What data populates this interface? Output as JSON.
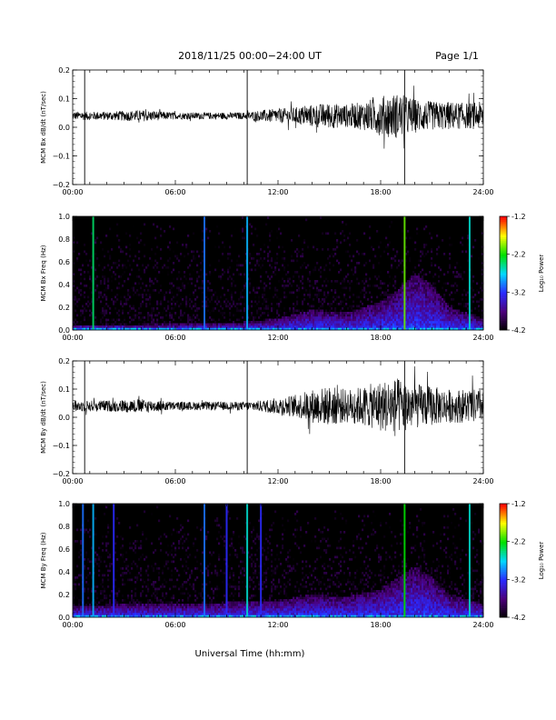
{
  "header": {
    "title": "2018/11/25  00:00−24:00 UT",
    "page": "Page 1/1"
  },
  "footer": {
    "xlabel": "Universal Time (hh:mm)"
  },
  "colormap": [
    "#000000",
    "#4b007a",
    "#2a2aff",
    "#00d8ff",
    "#00e000",
    "#ffff00",
    "#ff0000"
  ],
  "chart_data": [
    {
      "type": "line",
      "ylabel": "MCM Bx dB/dt (nT/sec)",
      "x": [
        "00:00",
        "06:00",
        "12:00",
        "18:00",
        "24:00"
      ],
      "yticks": [
        "0.2",
        "0.1",
        "0.0",
        "−0.1",
        "−0.2"
      ],
      "ylim": [
        -0.2,
        0.2
      ],
      "xlim_hours": [
        0,
        24
      ],
      "baseline": 0.04,
      "spikes_hours": [
        0.7,
        10.2,
        19.4
      ],
      "series": [
        {
          "hours": [
            0,
            2,
            4,
            6,
            8,
            10,
            11,
            12,
            13,
            14,
            15,
            16,
            17,
            18,
            19,
            20,
            21,
            22,
            23,
            24
          ],
          "envelope": [
            0.015,
            0.015,
            0.02,
            0.012,
            0.012,
            0.012,
            0.02,
            0.025,
            0.03,
            0.04,
            0.045,
            0.04,
            0.05,
            0.07,
            0.08,
            0.06,
            0.05,
            0.05,
            0.045,
            0.05
          ]
        }
      ]
    },
    {
      "type": "heatmap",
      "ylabel": "MCM Bx Freq (Hz)",
      "x": [
        "00:00",
        "06:00",
        "12:00",
        "18:00",
        "24:00"
      ],
      "yticks": [
        "1.0",
        "0.8",
        "0.6",
        "0.4",
        "0.2",
        "0.0"
      ],
      "ylim": [
        0,
        1
      ],
      "xlim_hours": [
        0,
        24
      ],
      "colorbar": {
        "label": "Log₁₀ Power",
        "ticks": [
          "-1.2",
          "-2.2",
          "-3.2",
          "-4.2"
        ],
        "range": [
          -4.2,
          -1.2
        ]
      },
      "activity_hours": [
        0,
        4,
        8,
        10,
        12,
        14,
        16,
        18,
        19,
        20,
        21,
        22,
        24
      ],
      "activity_max_freq": [
        0.05,
        0.05,
        0.06,
        0.07,
        0.1,
        0.18,
        0.15,
        0.25,
        0.35,
        0.5,
        0.4,
        0.2,
        0.1
      ],
      "stripes_hours": [
        1.2,
        7.7,
        10.2,
        19.4,
        23.2
      ],
      "stripe_power": [
        -2.4,
        -3.0,
        -2.8,
        -2.0,
        -2.6
      ]
    },
    {
      "type": "line",
      "ylabel": "MCM By dB/dt (nT/sec)",
      "x": [
        "00:00",
        "06:00",
        "12:00",
        "18:00",
        "24:00"
      ],
      "yticks": [
        "0.2",
        "0.1",
        "0.0",
        "−0.1",
        "−0.2"
      ],
      "ylim": [
        -0.2,
        0.2
      ],
      "xlim_hours": [
        0,
        24
      ],
      "baseline": 0.04,
      "spikes_hours": [
        0.7,
        10.2,
        19.4
      ],
      "series": [
        {
          "hours": [
            0,
            2,
            4,
            6,
            8,
            10,
            11,
            12,
            13,
            14,
            15,
            16,
            17,
            18,
            19,
            20,
            21,
            22,
            23,
            24
          ],
          "envelope": [
            0.02,
            0.02,
            0.025,
            0.015,
            0.015,
            0.015,
            0.02,
            0.03,
            0.04,
            0.06,
            0.07,
            0.06,
            0.07,
            0.09,
            0.1,
            0.08,
            0.07,
            0.06,
            0.06,
            0.06
          ]
        }
      ]
    },
    {
      "type": "heatmap",
      "ylabel": "MCM By Freq (Hz)",
      "x": [
        "00:00",
        "06:00",
        "12:00",
        "18:00",
        "24:00"
      ],
      "yticks": [
        "1.0",
        "0.8",
        "0.6",
        "0.4",
        "0.2",
        "0.0"
      ],
      "ylim": [
        0,
        1
      ],
      "xlim_hours": [
        0,
        24
      ],
      "colorbar": {
        "label": "Log₁₀ Power",
        "ticks": [
          "-1.2",
          "-2.2",
          "-3.2",
          "-4.2"
        ],
        "range": [
          -4.2,
          -1.2
        ]
      },
      "activity_hours": [
        0,
        4,
        8,
        10,
        12,
        14,
        16,
        18,
        19,
        20,
        21,
        22,
        24
      ],
      "activity_max_freq": [
        0.1,
        0.12,
        0.12,
        0.14,
        0.15,
        0.2,
        0.18,
        0.25,
        0.35,
        0.45,
        0.35,
        0.2,
        0.12
      ],
      "stripes_hours": [
        0.6,
        1.2,
        2.4,
        7.7,
        9.0,
        10.2,
        11.0,
        19.4,
        23.2
      ],
      "stripe_power": [
        -3.0,
        -2.8,
        -3.2,
        -3.0,
        -3.2,
        -2.6,
        -3.2,
        -2.2,
        -2.6
      ]
    }
  ]
}
